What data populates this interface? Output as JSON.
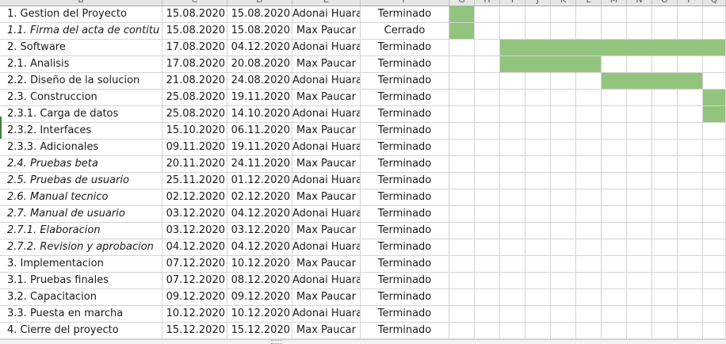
{
  "columns": [
    "B",
    "C",
    "D",
    "E",
    "F",
    "G",
    "H",
    "I",
    "J",
    "K",
    "L",
    "M",
    "N",
    "O",
    "P",
    "Q"
  ],
  "rows": [
    {
      "task": "1. Gestion del Proyecto",
      "italic": false,
      "start": "15.08.2020",
      "end": "15.08.2020",
      "resource": "Adonai Huara",
      "status": "Terminado",
      "bar": [
        0,
        0
      ]
    },
    {
      "task": "1.1. Firma del acta de contitu",
      "italic": true,
      "start": "15.08.2020",
      "end": "15.08.2020",
      "resource": "Max Paucar",
      "status": "Cerrado",
      "bar": [
        0,
        0
      ]
    },
    {
      "task": "2. Software",
      "italic": false,
      "start": "17.08.2020",
      "end": "04.12.2020",
      "resource": "Adonai Huara",
      "status": "Terminado",
      "bar": [
        2,
        10
      ]
    },
    {
      "task": "2.1. Analisis",
      "italic": false,
      "start": "17.08.2020",
      "end": "20.08.2020",
      "resource": "Max Paucar",
      "status": "Terminado",
      "bar": [
        2,
        5
      ]
    },
    {
      "task": "2.2. Diseño de la solucion",
      "italic": false,
      "start": "21.08.2020",
      "end": "24.08.2020",
      "resource": "Adonai Huara",
      "status": "Terminado",
      "bar": [
        6,
        9
      ]
    },
    {
      "task": "2.3. Construccion",
      "italic": false,
      "start": "25.08.2020",
      "end": "19.11.2020",
      "resource": "Max Paucar",
      "status": "Terminado",
      "bar": [
        10,
        10
      ]
    },
    {
      "task": "2.3.1. Carga de datos",
      "italic": false,
      "start": "25.08.2020",
      "end": "14.10.2020",
      "resource": "Adonai Huara",
      "status": "Terminado",
      "bar": [
        10,
        10
      ]
    },
    {
      "task": "2.3.2. Interfaces",
      "italic": false,
      "start": "15.10.2020",
      "end": "06.11.2020",
      "resource": "Max Paucar",
      "status": "Terminado",
      "bar": null
    },
    {
      "task": "2.3.3. Adicionales",
      "italic": false,
      "start": "09.11.2020",
      "end": "19.11.2020",
      "resource": "Adonai Huara",
      "status": "Terminado",
      "bar": null
    },
    {
      "task": "2.4. Pruebas beta",
      "italic": true,
      "start": "20.11.2020",
      "end": "24.11.2020",
      "resource": "Max Paucar",
      "status": "Terminado",
      "bar": null
    },
    {
      "task": "2.5. Pruebas de usuario",
      "italic": true,
      "start": "25.11.2020",
      "end": "01.12.2020",
      "resource": "Adonai Huara",
      "status": "Terminado",
      "bar": null
    },
    {
      "task": "2.6. Manual tecnico",
      "italic": true,
      "start": "02.12.2020",
      "end": "02.12.2020",
      "resource": "Max Paucar",
      "status": "Terminado",
      "bar": null
    },
    {
      "task": "2.7. Manual de usuario",
      "italic": true,
      "start": "03.12.2020",
      "end": "04.12.2020",
      "resource": "Adonai Huara",
      "status": "Terminado",
      "bar": null
    },
    {
      "task": "2.7.1. Elaboracion",
      "italic": true,
      "start": "03.12.2020",
      "end": "03.12.2020",
      "resource": "Max Paucar",
      "status": "Terminado",
      "bar": null
    },
    {
      "task": "2.7.2. Revision y aprobacion",
      "italic": true,
      "start": "04.12.2020",
      "end": "04.12.2020",
      "resource": "Adonai Huara",
      "status": "Terminado",
      "bar": null
    },
    {
      "task": "3. Implementacion",
      "italic": false,
      "start": "07.12.2020",
      "end": "10.12.2020",
      "resource": "Max Paucar",
      "status": "Terminado",
      "bar": null
    },
    {
      "task": "3.1. Pruebas finales",
      "italic": false,
      "start": "07.12.2020",
      "end": "08.12.2020",
      "resource": "Adonai Huara",
      "status": "Terminado",
      "bar": null
    },
    {
      "task": "3.2. Capacitacion",
      "italic": false,
      "start": "09.12.2020",
      "end": "09.12.2020",
      "resource": "Max Paucar",
      "status": "Terminado",
      "bar": null
    },
    {
      "task": "3.3. Puesta en marcha",
      "italic": false,
      "start": "10.12.2020",
      "end": "10.12.2020",
      "resource": "Adonai Huara",
      "status": "Terminado",
      "bar": null
    },
    {
      "task": "4. Cierre del proyecto",
      "italic": false,
      "start": "15.12.2020",
      "end": "15.12.2020",
      "resource": "Max Paucar",
      "status": "Terminado",
      "bar": null
    }
  ],
  "colors": {
    "gantt_fill": "#93c47d",
    "grid": "#d4d4d4",
    "header": "#e6e6e6"
  }
}
